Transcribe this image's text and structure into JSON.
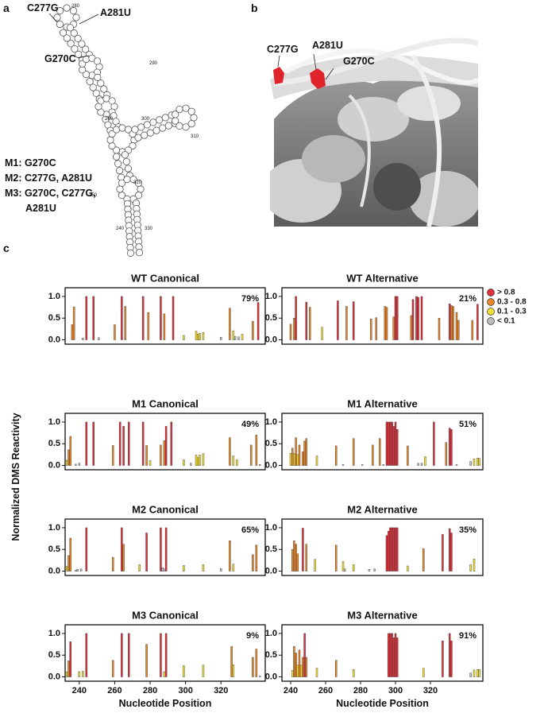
{
  "panel_labels": [
    "a",
    "b",
    "c"
  ],
  "panel_a": {
    "mutation_labels": [
      "C277G",
      "A281U",
      "G270C"
    ],
    "position_labels": [
      280,
      290,
      260,
      300,
      310,
      250,
      320,
      240,
      330
    ],
    "mutants": [
      "M1: G270C",
      "M2: C277G, A281U",
      "M3: G270C, C277G,",
      "A281U"
    ]
  },
  "panel_b": {
    "mutation_labels": [
      "C277G",
      "A281U",
      "G270C"
    ]
  },
  "ylabel": "Normalized DMS Reactivity",
  "legend": [
    {
      "name": "> 0.8",
      "color": "#e0303a"
    },
    {
      "name": "0.3 - 0.8",
      "color": "#e8862a"
    },
    {
      "name": "0.1 - 0.3",
      "color": "#f3e034"
    },
    {
      "name": "< 0.1",
      "color": "#bdbdbd"
    }
  ],
  "chart_data": [
    {
      "type": "bar",
      "title": "WT Canonical",
      "annotation": "79%",
      "xlim": [
        232,
        345
      ],
      "ylim": [
        -0.1,
        1.2
      ],
      "yticks": [
        {
          "value": 0,
          "label": "0.0"
        },
        {
          "value": 0.5,
          "label": "0.5"
        },
        {
          "value": 1,
          "label": "1.0"
        }
      ],
      "series": [
        {
          "color": "#e0303a",
          "x": [
            244,
            248,
            264,
            276,
            286,
            293,
            341
          ],
          "values": [
            1,
            1,
            1,
            1,
            1,
            1,
            0.86
          ]
        },
        {
          "color": "#e8862a",
          "x": [
            236,
            237,
            260,
            266,
            279,
            288,
            325,
            338
          ],
          "values": [
            0.35,
            0.76,
            0.35,
            0.77,
            0.63,
            0.6,
            0.73,
            0.43
          ]
        },
        {
          "color": "#f3e034",
          "x": [
            299,
            306,
            307,
            308,
            310,
            327,
            332
          ],
          "values": [
            0.1,
            0.2,
            0.13,
            0.15,
            0.17,
            0.21,
            0.13
          ]
        },
        {
          "color": "#bdbdbd",
          "x": [
            242,
            251,
            320,
            328,
            330
          ],
          "values": [
            0.04,
            0.05,
            0.06,
            0.08,
            0.07
          ]
        }
      ]
    },
    {
      "type": "bar",
      "title": "WT Alternative",
      "annotation": "21%",
      "xlim": [
        235,
        350
      ],
      "ylim": [
        -0.1,
        1.2
      ],
      "yticks": [
        {
          "value": 0,
          "label": "0.0"
        },
        {
          "value": 0.5,
          "label": "0.5"
        },
        {
          "value": 1,
          "label": "1.0"
        }
      ],
      "series": [
        {
          "color": "#e0303a",
          "x": [
            243,
            249,
            267,
            276,
            300,
            301,
            310,
            312,
            313,
            315,
            331,
            347
          ],
          "values": [
            1,
            0.87,
            0.9,
            0.88,
            1,
            1,
            0.93,
            1,
            0.98,
            1,
            0.83,
            0.82
          ]
        },
        {
          "color": "#e8862a",
          "x": [
            240,
            242,
            251,
            272,
            286,
            289,
            294,
            295,
            299,
            309,
            325,
            332,
            333,
            335,
            336,
            344
          ],
          "values": [
            0.36,
            0.5,
            0.75,
            0.77,
            0.48,
            0.51,
            0.77,
            0.75,
            0.53,
            0.56,
            0.5,
            0.79,
            0.77,
            0.63,
            0.45,
            0.45
          ]
        },
        {
          "color": "#f3e034",
          "x": [
            258
          ],
          "values": [
            0.29
          ]
        }
      ]
    },
    {
      "type": "bar",
      "title": "M1 Canonical",
      "annotation": "49%",
      "xlim": [
        232,
        345
      ],
      "ylim": [
        -0.1,
        1.2
      ],
      "yticks": [
        {
          "value": 0,
          "label": "0.0"
        },
        {
          "value": 0.5,
          "label": "0.5"
        },
        {
          "value": 1,
          "label": "1.0"
        }
      ],
      "series": [
        {
          "color": "#e0303a",
          "x": [
            244,
            248,
            263,
            265,
            268,
            276,
            289,
            292
          ],
          "values": [
            1,
            1,
            1,
            0.9,
            1,
            1,
            0.9,
            1
          ]
        },
        {
          "color": "#e8862a",
          "x": [
            234,
            235,
            259,
            278,
            286,
            288,
            325,
            337,
            340
          ],
          "values": [
            0.36,
            0.67,
            0.46,
            0.46,
            0.47,
            0.57,
            0.64,
            0.47,
            0.7
          ]
        },
        {
          "color": "#f3e034",
          "x": [
            233,
            280,
            299,
            306,
            307,
            308,
            310,
            327,
            329
          ],
          "values": [
            0.12,
            0.11,
            0.13,
            0.24,
            0.18,
            0.24,
            0.27,
            0.22,
            0.13
          ]
        },
        {
          "color": "#bdbdbd",
          "x": [
            238,
            240,
            303,
            342
          ],
          "values": [
            0.03,
            0.05,
            0.05,
            0.02
          ]
        }
      ]
    },
    {
      "type": "bar",
      "title": "M1 Alternative",
      "annotation": "51%",
      "xlim": [
        235,
        350
      ],
      "ylim": [
        -0.1,
        1.2
      ],
      "yticks": [
        {
          "value": 0,
          "label": "0.0"
        },
        {
          "value": 0.5,
          "label": "0.5"
        },
        {
          "value": 1,
          "label": "1.0"
        }
      ],
      "series": [
        {
          "color": "#e0303a",
          "x": [
            295,
            296,
            297,
            298,
            299,
            300,
            301,
            322,
            331,
            332
          ],
          "values": [
            1,
            1,
            1,
            1,
            0.9,
            1,
            0.83,
            1,
            0.86,
            0.83
          ]
        },
        {
          "color": "#e8862a",
          "x": [
            241,
            243,
            245,
            247,
            248,
            249,
            266,
            276,
            287,
            291,
            307,
            329
          ],
          "values": [
            0.4,
            0.64,
            0.47,
            0.32,
            0.56,
            0.62,
            0.45,
            0.62,
            0.47,
            0.62,
            0.45,
            0.53
          ]
        },
        {
          "color": "#f3e034",
          "x": [
            240,
            242,
            244,
            255,
            317,
            345,
            347,
            348
          ],
          "values": [
            0.28,
            0.27,
            0.25,
            0.22,
            0.2,
            0.15,
            0.17,
            0.16
          ]
        },
        {
          "color": "#bdbdbd",
          "x": [
            270,
            281,
            293,
            313,
            315,
            335,
            343
          ],
          "values": [
            0.02,
            0.02,
            0.02,
            0.05,
            0.05,
            0.02,
            0.09
          ]
        }
      ]
    },
    {
      "type": "bar",
      "title": "M2 Canonical",
      "annotation": "65%",
      "xlim": [
        232,
        345
      ],
      "ylim": [
        -0.1,
        1.2
      ],
      "yticks": [
        {
          "value": 0,
          "label": "0.0"
        },
        {
          "value": 0.5,
          "label": "0.5"
        },
        {
          "value": 1,
          "label": "1.0"
        }
      ],
      "series": [
        {
          "color": "#e0303a",
          "x": [
            244,
            264,
            278,
            286,
            289
          ],
          "values": [
            1,
            1,
            0.88,
            1,
            1
          ]
        },
        {
          "color": "#e8862a",
          "x": [
            234,
            235,
            259,
            265,
            325,
            338,
            340
          ],
          "values": [
            0.36,
            0.76,
            0.32,
            0.62,
            0.7,
            0.38,
            0.6
          ]
        },
        {
          "color": "#f3e034",
          "x": [
            233,
            274,
            299,
            310,
            327
          ],
          "values": [
            0.11,
            0.15,
            0.13,
            0.15,
            0.16
          ]
        },
        {
          "color": "#bdbdbd",
          "x": [
            238,
            239,
            241,
            287,
            288,
            320
          ],
          "values": [
            0.02,
            0.04,
            0.05,
            0.08,
            0.05,
            0.06
          ]
        }
      ]
    },
    {
      "type": "bar",
      "title": "M2 Alternative",
      "annotation": "35%",
      "xlim": [
        235,
        350
      ],
      "ylim": [
        -0.1,
        1.2
      ],
      "yticks": [
        {
          "value": 0,
          "label": "0.0"
        },
        {
          "value": 0.5,
          "label": "0.5"
        },
        {
          "value": 1,
          "label": "1.0"
        }
      ],
      "series": [
        {
          "color": "#e0303a",
          "x": [
            247,
            295,
            296,
            297,
            298,
            299,
            300,
            301,
            327,
            331,
            332
          ],
          "values": [
            0.99,
            0.82,
            0.92,
            1,
            1,
            1,
            1,
            1,
            0.85,
            0.98,
            0.88
          ]
        },
        {
          "color": "#e8862a",
          "x": [
            241,
            242,
            243,
            244,
            249,
            266,
            316
          ],
          "values": [
            0.5,
            0.7,
            0.62,
            0.4,
            0.62,
            0.6,
            0.52
          ]
        },
        {
          "color": "#f3e034",
          "x": [
            254,
            270,
            276,
            307,
            343,
            345
          ],
          "values": [
            0.27,
            0.22,
            0.15,
            0.12,
            0.15,
            0.28
          ]
        },
        {
          "color": "#bdbdbd",
          "x": [
            271,
            285,
            288
          ],
          "values": [
            0.05,
            0.04,
            0.05
          ]
        }
      ]
    },
    {
      "type": "bar",
      "title": "M3 Canonical",
      "annotation": "9%",
      "xlim": [
        232,
        345
      ],
      "ylim": [
        -0.1,
        1.2
      ],
      "yticks": [
        {
          "value": 0,
          "label": "0.0"
        },
        {
          "value": 0.5,
          "label": "0.5"
        },
        {
          "value": 1,
          "label": "1.0"
        }
      ],
      "xticks": [
        240,
        260,
        280,
        300,
        320
      ],
      "xlabel": "Nucleotide Position",
      "series": [
        {
          "color": "#e0303a",
          "x": [
            235,
            244,
            264,
            268,
            286,
            289
          ],
          "values": [
            0.81,
            1,
            1,
            1,
            1,
            1
          ]
        },
        {
          "color": "#e8862a",
          "x": [
            234,
            259,
            278,
            326,
            338,
            340
          ],
          "values": [
            0.37,
            0.38,
            0.75,
            0.7,
            0.45,
            0.64
          ]
        },
        {
          "color": "#f3e034",
          "x": [
            233,
            240,
            242,
            288,
            299,
            310,
            327
          ],
          "values": [
            0.12,
            0.12,
            0.13,
            0.12,
            0.26,
            0.27,
            0.28
          ]
        },
        {
          "color": "#bdbdbd",
          "x": [
            342
          ],
          "values": [
            0.02
          ]
        }
      ]
    },
    {
      "type": "bar",
      "title": "M3 Alternative",
      "annotation": "91%",
      "xlim": [
        235,
        350
      ],
      "ylim": [
        -0.1,
        1.2
      ],
      "yticks": [
        {
          "value": 0,
          "label": "0.0"
        },
        {
          "value": 0.5,
          "label": "0.5"
        },
        {
          "value": 1,
          "label": "1.0"
        }
      ],
      "xticks": [
        240,
        260,
        280,
        300,
        320
      ],
      "xlabel": "Nucleotide Position",
      "series": [
        {
          "color": "#e0303a",
          "x": [
            248,
            296,
            297,
            298,
            299,
            300,
            301,
            327,
            331,
            332
          ],
          "values": [
            1,
            1,
            1,
            1,
            0.9,
            1,
            0.9,
            0.83,
            1,
            0.83
          ]
        },
        {
          "color": "#e8862a",
          "x": [
            242,
            243,
            245,
            247,
            249,
            266
          ],
          "values": [
            0.7,
            0.55,
            0.62,
            0.45,
            0.45,
            0.38
          ]
        },
        {
          "color": "#f3e034",
          "x": [
            241,
            244,
            246,
            255,
            276,
            316,
            345,
            347,
            348
          ],
          "values": [
            0.15,
            0.27,
            0.27,
            0.2,
            0.17,
            0.2,
            0.16,
            0.17,
            0.17
          ]
        },
        {
          "color": "#bdbdbd",
          "x": [
            343
          ],
          "values": [
            0.09
          ]
        }
      ]
    }
  ]
}
